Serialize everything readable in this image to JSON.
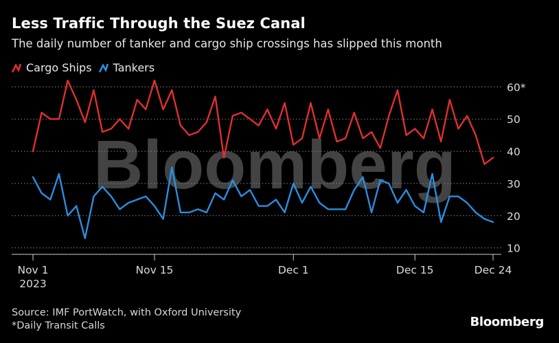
{
  "title": "Less Traffic Through the Suez Canal",
  "subtitle": "The daily number of tanker and cargo ship crossings has slipped this month",
  "watermark": "Bloomberg",
  "footer": {
    "source": "Source: IMF PortWatch, with Oxford University",
    "note": "*Daily Transit Calls"
  },
  "brand": "Bloomberg",
  "colors": {
    "cargo": "#e03030",
    "tankers": "#2a8fe0",
    "background": "#000000",
    "grid": "#8a8a8a"
  },
  "chart_data": {
    "type": "line",
    "x_start": "2023-11-01",
    "x_end": "2023-12-24",
    "ylim": [
      8,
      62
    ],
    "yticks": [
      {
        "value": 10,
        "label": "10"
      },
      {
        "value": 20,
        "label": "20"
      },
      {
        "value": 30,
        "label": "30"
      },
      {
        "value": 40,
        "label": "40"
      },
      {
        "value": 50,
        "label": "50"
      },
      {
        "value": 60,
        "label": "60*"
      }
    ],
    "xticks": [
      {
        "date": "2023-11-01",
        "label": "Nov 1",
        "sublabel": "2023"
      },
      {
        "date": "2023-11-15",
        "label": "Nov 15",
        "sublabel": ""
      },
      {
        "date": "2023-12-01",
        "label": "Dec 1",
        "sublabel": ""
      },
      {
        "date": "2023-12-15",
        "label": "Dec 15",
        "sublabel": ""
      },
      {
        "date": "2023-12-24",
        "label": "Dec 24",
        "sublabel": ""
      }
    ],
    "grid": "horizontal-dotted",
    "legend": "top-left",
    "series": [
      {
        "name": "Cargo Ships",
        "dates": [
          "2023-11-01",
          "2023-11-02",
          "2023-11-03",
          "2023-11-04",
          "2023-11-05",
          "2023-11-06",
          "2023-11-07",
          "2023-11-08",
          "2023-11-09",
          "2023-11-10",
          "2023-11-11",
          "2023-11-12",
          "2023-11-13",
          "2023-11-14",
          "2023-11-15",
          "2023-11-16",
          "2023-11-17",
          "2023-11-18",
          "2023-11-19",
          "2023-11-20",
          "2023-11-21",
          "2023-11-22",
          "2023-11-23",
          "2023-11-24",
          "2023-11-25",
          "2023-11-26",
          "2023-11-27",
          "2023-11-28",
          "2023-11-29",
          "2023-11-30",
          "2023-12-01",
          "2023-12-02",
          "2023-12-03",
          "2023-12-04",
          "2023-12-05",
          "2023-12-06",
          "2023-12-07",
          "2023-12-08",
          "2023-12-09",
          "2023-12-10",
          "2023-12-11",
          "2023-12-12",
          "2023-12-13",
          "2023-12-14",
          "2023-12-15",
          "2023-12-16",
          "2023-12-17",
          "2023-12-18",
          "2023-12-19",
          "2023-12-20",
          "2023-12-21",
          "2023-12-22",
          "2023-12-23",
          "2023-12-24"
        ],
        "values": [
          40,
          52,
          50,
          50,
          62,
          56,
          49,
          59,
          46,
          47,
          50,
          47,
          56,
          53,
          62,
          53,
          59,
          48,
          45,
          46,
          49,
          57,
          38,
          51,
          52,
          50,
          48,
          53,
          47,
          55,
          42,
          44,
          55,
          44,
          53,
          43,
          44,
          52,
          44,
          46,
          41,
          51,
          59,
          45,
          47,
          44,
          53,
          43,
          56,
          47,
          51,
          45,
          36,
          38
        ]
      },
      {
        "name": "Tankers",
        "dates": [
          "2023-11-01",
          "2023-11-02",
          "2023-11-03",
          "2023-11-04",
          "2023-11-05",
          "2023-11-06",
          "2023-11-07",
          "2023-11-08",
          "2023-11-09",
          "2023-11-10",
          "2023-11-11",
          "2023-11-12",
          "2023-11-13",
          "2023-11-14",
          "2023-11-15",
          "2023-11-16",
          "2023-11-17",
          "2023-11-18",
          "2023-11-19",
          "2023-11-20",
          "2023-11-21",
          "2023-11-22",
          "2023-11-23",
          "2023-11-24",
          "2023-11-25",
          "2023-11-26",
          "2023-11-27",
          "2023-11-28",
          "2023-11-29",
          "2023-11-30",
          "2023-12-01",
          "2023-12-02",
          "2023-12-03",
          "2023-12-04",
          "2023-12-05",
          "2023-12-06",
          "2023-12-07",
          "2023-12-08",
          "2023-12-09",
          "2023-12-10",
          "2023-12-11",
          "2023-12-12",
          "2023-12-13",
          "2023-12-14",
          "2023-12-15",
          "2023-12-16",
          "2023-12-17",
          "2023-12-18",
          "2023-12-19",
          "2023-12-20",
          "2023-12-21",
          "2023-12-22",
          "2023-12-23",
          "2023-12-24"
        ],
        "values": [
          32,
          27,
          25,
          33,
          20,
          23,
          13,
          26,
          29,
          26,
          22,
          24,
          25,
          26,
          23,
          19,
          35,
          21,
          21,
          22,
          21,
          27,
          25,
          31,
          26,
          28,
          23,
          23,
          25,
          21,
          30,
          24,
          29,
          24,
          22,
          22,
          22,
          28,
          32,
          21,
          31,
          30,
          24,
          28,
          23,
          21,
          33,
          18,
          26,
          26,
          24,
          21,
          19,
          18
        ]
      }
    ]
  }
}
